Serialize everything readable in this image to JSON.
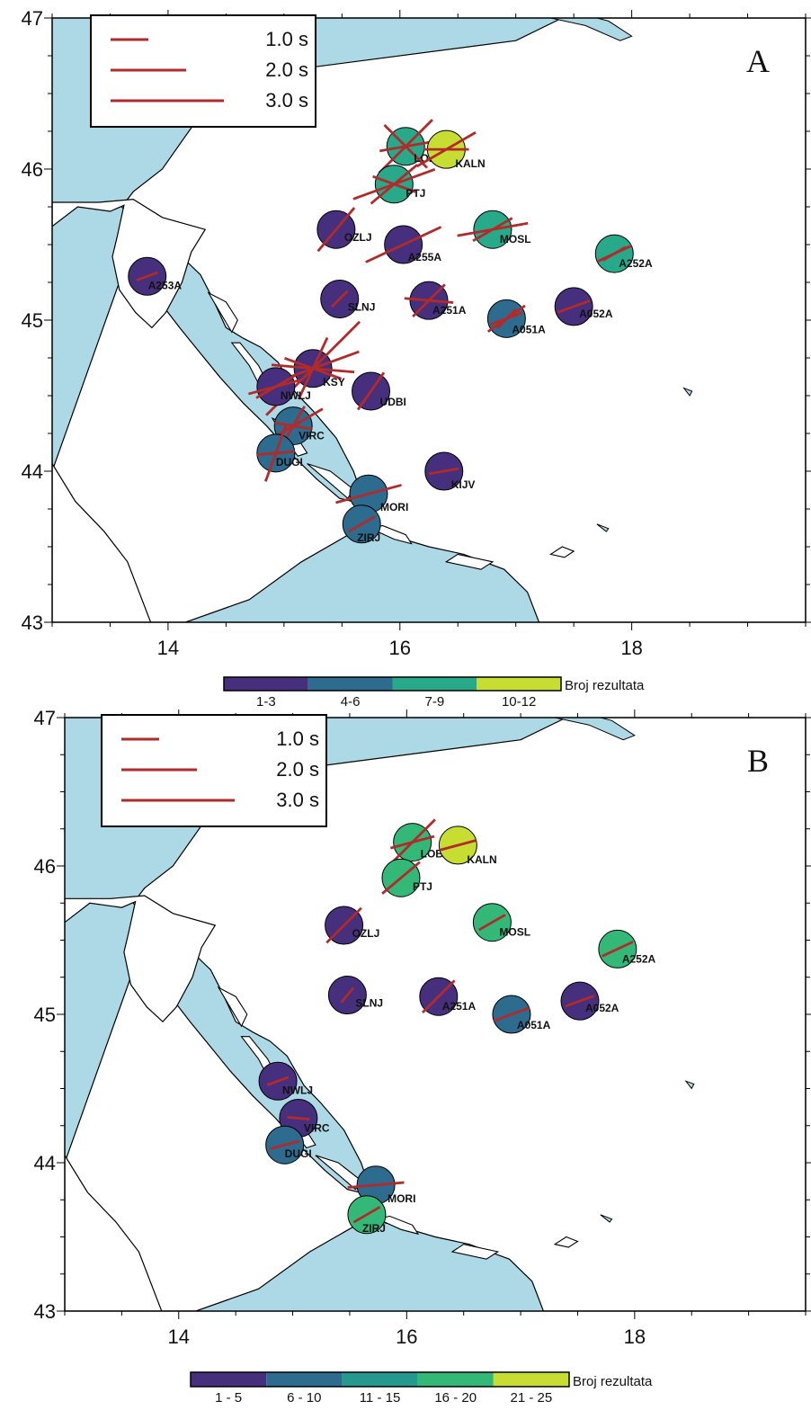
{
  "colors": {
    "sea": "#add8e6",
    "land": "#ffffff",
    "coast": "#000000",
    "bar": "#b22a2a"
  },
  "axes": {
    "x_ticks": [
      "14",
      "16",
      "18"
    ],
    "y_ticks": [
      "43",
      "44",
      "45",
      "46",
      "47"
    ]
  },
  "legend": {
    "entries": [
      "1.0 s",
      "2.0 s",
      "3.0 s"
    ]
  },
  "panels": [
    {
      "letter": "A",
      "colorbar": {
        "title": "Broj rezultata",
        "bins": [
          "1-3",
          "4-6",
          "7-9",
          "10-12"
        ],
        "colors": [
          "#462f7c",
          "#2d6b8f",
          "#27a98a",
          "#c8dd32"
        ]
      },
      "stations": [
        {
          "name": "A253A",
          "lon": 13.82,
          "lat": 45.29,
          "bin": 0
        },
        {
          "name": "LOBO",
          "lon": 16.05,
          "lat": 46.15,
          "bin": 2
        },
        {
          "name": "KALN",
          "lon": 16.4,
          "lat": 46.13,
          "bin": 3
        },
        {
          "name": "PTJ",
          "lon": 15.95,
          "lat": 45.9,
          "bin": 2
        },
        {
          "name": "OZLJ",
          "lon": 15.45,
          "lat": 45.6,
          "bin": 0
        },
        {
          "name": "A255A",
          "lon": 16.03,
          "lat": 45.5,
          "bin": 0
        },
        {
          "name": "MOSL",
          "lon": 16.8,
          "lat": 45.6,
          "bin": 2
        },
        {
          "name": "A252A",
          "lon": 17.85,
          "lat": 45.44,
          "bin": 2
        },
        {
          "name": "SLNJ",
          "lon": 15.48,
          "lat": 45.14,
          "bin": 0
        },
        {
          "name": "A251A",
          "lon": 16.25,
          "lat": 45.13,
          "bin": 0
        },
        {
          "name": "A051A",
          "lon": 16.92,
          "lat": 45.01,
          "bin": 1
        },
        {
          "name": "A052A",
          "lon": 17.5,
          "lat": 45.09,
          "bin": 0
        },
        {
          "name": "KSY",
          "lon": 15.25,
          "lat": 44.68,
          "bin": 0
        },
        {
          "name": "NWLJ",
          "lon": 14.93,
          "lat": 44.56,
          "bin": 0
        },
        {
          "name": "UDBI",
          "lon": 15.75,
          "lat": 44.53,
          "bin": 0
        },
        {
          "name": "VIRC",
          "lon": 15.08,
          "lat": 44.3,
          "bin": 1
        },
        {
          "name": "DUGI",
          "lon": 14.93,
          "lat": 44.12,
          "bin": 1
        },
        {
          "name": "KIJV",
          "lon": 16.38,
          "lat": 44.0,
          "bin": 0
        },
        {
          "name": "MORI",
          "lon": 15.73,
          "lat": 43.85,
          "bin": 1
        },
        {
          "name": "ZIRJ",
          "lon": 15.67,
          "lat": 43.65,
          "bin": 1
        }
      ]
    },
    {
      "letter": "B",
      "colorbar": {
        "title": "Broj rezultata",
        "bins": [
          "1 - 5",
          "6 - 10",
          "11 - 15",
          "16 - 20",
          "21 - 25"
        ],
        "colors": [
          "#462f7c",
          "#2d6b8f",
          "#25998d",
          "#33b877",
          "#c8dd32"
        ]
      },
      "stations": [
        {
          "name": "LOBO",
          "lon": 16.05,
          "lat": 46.16,
          "bin": 3
        },
        {
          "name": "KALN",
          "lon": 16.45,
          "lat": 46.14,
          "bin": 4
        },
        {
          "name": "PTJ",
          "lon": 15.95,
          "lat": 45.92,
          "bin": 3
        },
        {
          "name": "OZLJ",
          "lon": 15.45,
          "lat": 45.6,
          "bin": 0
        },
        {
          "name": "MOSL",
          "lon": 16.75,
          "lat": 45.62,
          "bin": 3
        },
        {
          "name": "A252A",
          "lon": 17.85,
          "lat": 45.44,
          "bin": 3
        },
        {
          "name": "SLNJ",
          "lon": 15.48,
          "lat": 45.13,
          "bin": 0
        },
        {
          "name": "A251A",
          "lon": 16.28,
          "lat": 45.12,
          "bin": 0
        },
        {
          "name": "A051A",
          "lon": 16.92,
          "lat": 45.0,
          "bin": 1
        },
        {
          "name": "A052A",
          "lon": 17.52,
          "lat": 45.09,
          "bin": 0
        },
        {
          "name": "NWLJ",
          "lon": 14.87,
          "lat": 44.55,
          "bin": 0
        },
        {
          "name": "VIRC",
          "lon": 15.05,
          "lat": 44.3,
          "bin": 0
        },
        {
          "name": "DUGI",
          "lon": 14.93,
          "lat": 44.12,
          "bin": 1
        },
        {
          "name": "MORI",
          "lon": 15.73,
          "lat": 43.85,
          "bin": 1
        },
        {
          "name": "ZIRJ",
          "lon": 15.65,
          "lat": 43.65,
          "bin": 3
        }
      ]
    }
  ]
}
